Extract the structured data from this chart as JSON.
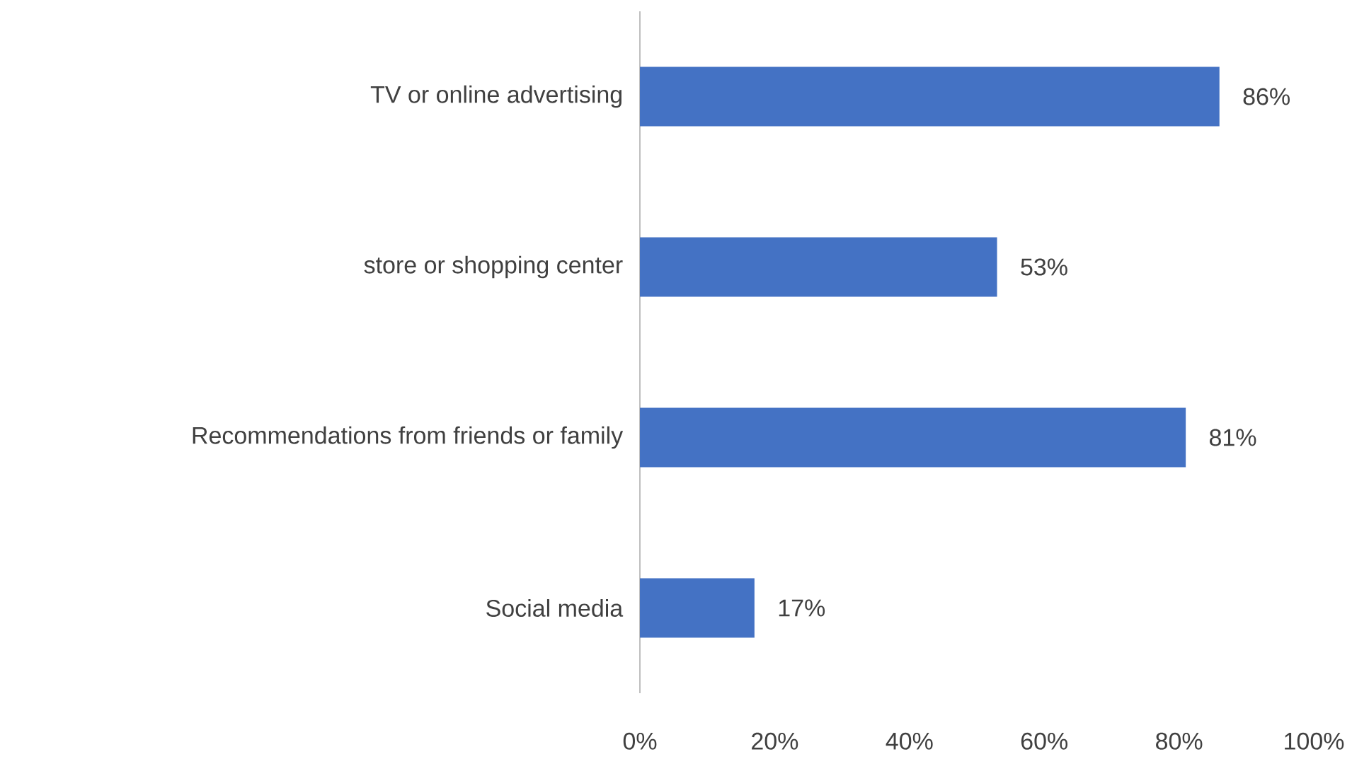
{
  "chart_data": {
    "type": "bar",
    "orientation": "horizontal",
    "categories": [
      "TV or online advertising",
      "store or shopping center",
      "Recommendations from friends or family",
      "Social media"
    ],
    "values": [
      86,
      53,
      81,
      17
    ],
    "value_labels": [
      "86%",
      "53%",
      "81%",
      "17%"
    ],
    "color": "#4472c4",
    "xlim": [
      0,
      100
    ],
    "xticks": [
      {
        "value": 0,
        "label": "0%"
      },
      {
        "value": 20,
        "label": "20%"
      },
      {
        "value": 40,
        "label": "40%"
      },
      {
        "value": 60,
        "label": "60%"
      },
      {
        "value": 80,
        "label": "80%"
      },
      {
        "value": 100,
        "label": "100%"
      }
    ]
  }
}
